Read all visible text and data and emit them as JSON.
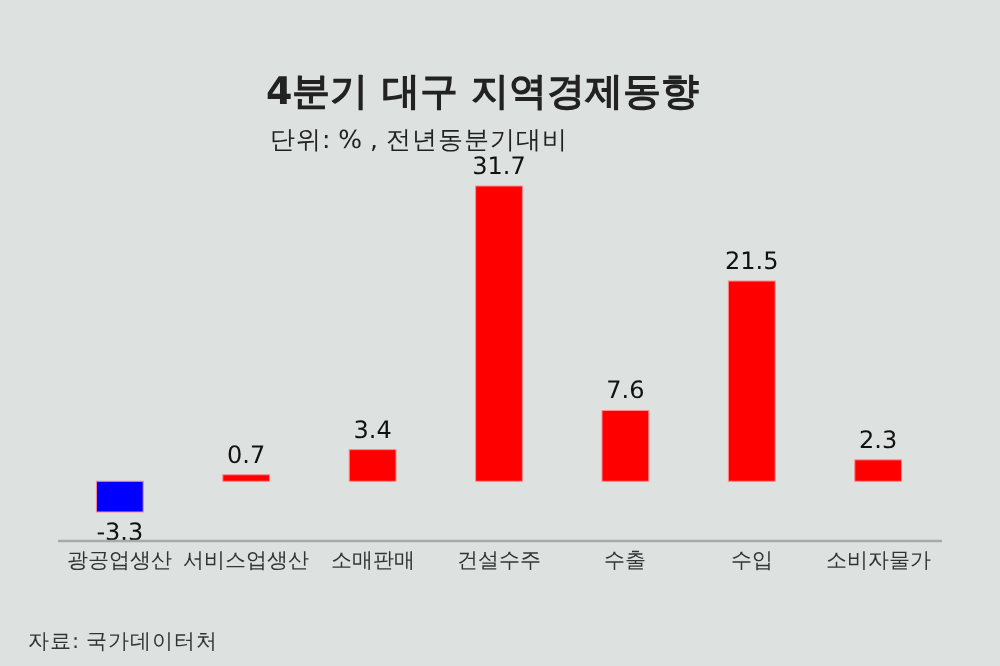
{
  "chart_data": {
    "type": "bar",
    "title": "4분기 대구 지역경제동향",
    "subtitle": "단위: % , 전년동분기대비",
    "categories": [
      "광공업생산",
      "서비스업생산",
      "소매판매",
      "건설수주",
      "수출",
      "수입",
      "소비자물가"
    ],
    "values": [
      -3.3,
      0.7,
      3.4,
      31.7,
      7.6,
      21.5,
      2.3
    ],
    "colors": [
      "#0000ff",
      "#ff0000",
      "#ff0000",
      "#ff0000",
      "#ff0000",
      "#ff0000",
      "#ff0000"
    ],
    "data_labels": true,
    "annotations": [
      "자료: 국가데이터처"
    ]
  }
}
